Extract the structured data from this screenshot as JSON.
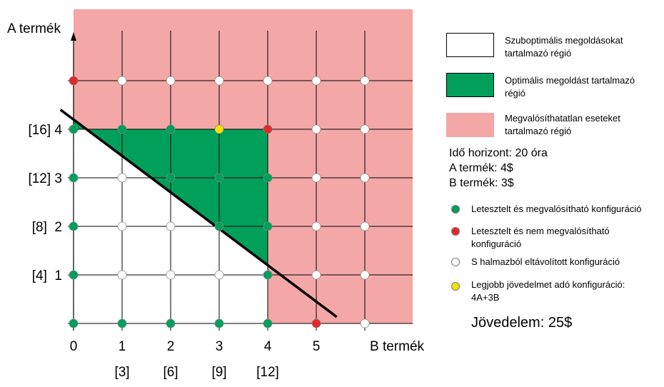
{
  "axes": {
    "y_title": "A termék",
    "x_title": "B termék",
    "x_ticks": [
      "0",
      "1",
      "2",
      "3",
      "4",
      "5"
    ],
    "x_sub_ticks": [
      "[3]",
      "[6]",
      "[9]",
      "[12]"
    ],
    "y_ticks": [
      {
        "label": "[4]  1",
        "value": 1
      },
      {
        "label": "[8]  2",
        "value": 2
      },
      {
        "label": "[12] 3",
        "value": 3
      },
      {
        "label": "[16] 4",
        "value": 4
      }
    ]
  },
  "colors": {
    "infeasible": "#f4a7a7",
    "optimal": "#00a05a",
    "suboptimal": "#ffffff",
    "tested_feasible": "#00a05a",
    "tested_infeasible": "#e02a2a",
    "eliminated": "#ffffff",
    "best": "#f5e400"
  },
  "chart_data": {
    "type": "scatter",
    "x_range": [
      0,
      6
    ],
    "y_range": [
      0,
      5
    ],
    "constraint_line": {
      "A_coef": 4,
      "B_coef": 3,
      "limit": 16.8
    },
    "points": [
      {
        "B": 0,
        "A": 0,
        "s": "feasible"
      },
      {
        "B": 1,
        "A": 0,
        "s": "feasible"
      },
      {
        "B": 2,
        "A": 0,
        "s": "feasible"
      },
      {
        "B": 3,
        "A": 0,
        "s": "feasible"
      },
      {
        "B": 4,
        "A": 0,
        "s": "feasible"
      },
      {
        "B": 5,
        "A": 0,
        "s": "infeasible"
      },
      {
        "B": 6,
        "A": 0,
        "s": "eliminated"
      },
      {
        "B": 0,
        "A": 1,
        "s": "feasible"
      },
      {
        "B": 1,
        "A": 1,
        "s": "eliminated"
      },
      {
        "B": 2,
        "A": 1,
        "s": "eliminated"
      },
      {
        "B": 3,
        "A": 1,
        "s": "eliminated"
      },
      {
        "B": 4,
        "A": 1,
        "s": "feasible"
      },
      {
        "B": 5,
        "A": 1,
        "s": "eliminated"
      },
      {
        "B": 6,
        "A": 1,
        "s": "eliminated"
      },
      {
        "B": 0,
        "A": 2,
        "s": "feasible"
      },
      {
        "B": 1,
        "A": 2,
        "s": "eliminated"
      },
      {
        "B": 2,
        "A": 2,
        "s": "eliminated"
      },
      {
        "B": 3,
        "A": 2,
        "s": "feasible"
      },
      {
        "B": 4,
        "A": 2,
        "s": "feasible"
      },
      {
        "B": 5,
        "A": 2,
        "s": "eliminated"
      },
      {
        "B": 6,
        "A": 2,
        "s": "eliminated"
      },
      {
        "B": 0,
        "A": 3,
        "s": "feasible"
      },
      {
        "B": 1,
        "A": 3,
        "s": "eliminated"
      },
      {
        "B": 2,
        "A": 3,
        "s": "feasible"
      },
      {
        "B": 3,
        "A": 3,
        "s": "feasible"
      },
      {
        "B": 4,
        "A": 3,
        "s": "feasible"
      },
      {
        "B": 5,
        "A": 3,
        "s": "eliminated"
      },
      {
        "B": 6,
        "A": 3,
        "s": "eliminated"
      },
      {
        "B": 0,
        "A": 4,
        "s": "feasible"
      },
      {
        "B": 1,
        "A": 4,
        "s": "feasible"
      },
      {
        "B": 2,
        "A": 4,
        "s": "feasible"
      },
      {
        "B": 3,
        "A": 4,
        "s": "best"
      },
      {
        "B": 4,
        "A": 4,
        "s": "infeasible"
      },
      {
        "B": 5,
        "A": 4,
        "s": "eliminated"
      },
      {
        "B": 6,
        "A": 4,
        "s": "eliminated"
      },
      {
        "B": 0,
        "A": 5,
        "s": "infeasible"
      },
      {
        "B": 1,
        "A": 5,
        "s": "eliminated"
      },
      {
        "B": 2,
        "A": 5,
        "s": "eliminated"
      },
      {
        "B": 3,
        "A": 5,
        "s": "eliminated"
      },
      {
        "B": 4,
        "A": 5,
        "s": "eliminated"
      },
      {
        "B": 5,
        "A": 5,
        "s": "eliminated"
      },
      {
        "B": 6,
        "A": 5,
        "s": "eliminated"
      }
    ]
  },
  "legend": {
    "regions": [
      {
        "label": "Szuboptimális megoldásokat tartalmazó régió",
        "color": "#ffffff"
      },
      {
        "label": "Optimális megoldást tartalmazó régió",
        "color": "#00a05a"
      },
      {
        "label": "Megvalósíthatatlan eseteket tartalmazó régió",
        "color": "#f4a7a7"
      }
    ],
    "info_lines": [
      "Idő horizont: 20 óra",
      "A termék: 4$",
      "B termék: 3$"
    ],
    "dots": [
      {
        "label": "Letesztelt és megvalósítható  konfiguráció",
        "color": "#00a05a"
      },
      {
        "label": "Letesztelt és nem megvalósítható konfiguráció",
        "color": "#e02a2a"
      },
      {
        "label": "S halmazból eltávolított konfiguráció",
        "color": "#ffffff"
      },
      {
        "label": "Legjobb jövedelmet adó konfiguráció: 4A+3B",
        "color": "#f5e400"
      }
    ],
    "profit": "Jövedelem:  25$"
  }
}
